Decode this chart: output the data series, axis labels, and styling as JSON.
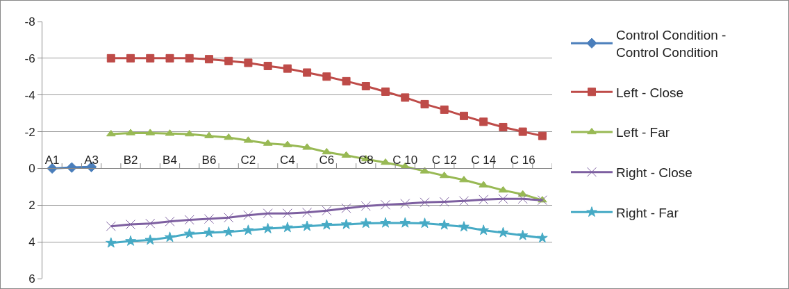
{
  "chart_data": {
    "type": "line",
    "categories": [
      "A1",
      null,
      "A3",
      null,
      "B2",
      null,
      "B4",
      null,
      "B6",
      null,
      "C2",
      null,
      "C4",
      null,
      "C6",
      null,
      "C8",
      null,
      "C 10",
      null,
      "C 12",
      null,
      "C 14",
      null,
      "C 16",
      null
    ],
    "series": [
      {
        "name": "Control Condition - Control Condition",
        "color": "#4a7ebb",
        "marker": "diamond",
        "values": [
          0,
          -0.05,
          -0.08,
          null,
          null,
          null,
          null,
          null,
          null,
          null,
          null,
          null,
          null,
          null,
          null,
          null,
          null,
          null,
          null,
          null,
          null,
          null,
          null,
          null,
          null,
          null
        ]
      },
      {
        "name": "Left - Close",
        "color": "#be4b48",
        "marker": "square",
        "values": [
          null,
          null,
          null,
          -6.0,
          -6.0,
          -6.0,
          -6.0,
          -6.0,
          -5.95,
          -5.85,
          -5.75,
          -5.58,
          -5.44,
          -5.22,
          -5.0,
          -4.75,
          -4.48,
          -4.18,
          -3.86,
          -3.5,
          -3.2,
          -2.86,
          -2.54,
          -2.25,
          -2.0,
          -1.77
        ]
      },
      {
        "name": "Left - Far",
        "color": "#98b954",
        "marker": "triangle",
        "values": [
          null,
          null,
          null,
          -1.87,
          -1.93,
          -1.93,
          -1.9,
          -1.87,
          -1.77,
          -1.68,
          -1.52,
          -1.36,
          -1.28,
          -1.14,
          -0.89,
          -0.71,
          -0.51,
          -0.32,
          -0.1,
          0.15,
          0.4,
          0.63,
          0.91,
          1.19,
          1.41,
          1.73
        ]
      },
      {
        "name": "Right - Close",
        "color": "#7d5fa0",
        "marker": "cross",
        "values": [
          null,
          null,
          null,
          3.15,
          3.05,
          3.0,
          2.89,
          2.8,
          2.75,
          2.68,
          2.55,
          2.45,
          2.45,
          2.4,
          2.3,
          2.17,
          2.05,
          1.98,
          1.92,
          1.85,
          1.82,
          1.77,
          1.7,
          1.66,
          1.66,
          1.73
        ]
      },
      {
        "name": "Right - Far",
        "color": "#46aac5",
        "marker": "star",
        "values": [
          null,
          null,
          null,
          4.06,
          3.96,
          3.9,
          3.75,
          3.56,
          3.5,
          3.46,
          3.37,
          3.28,
          3.22,
          3.15,
          3.08,
          3.05,
          2.99,
          2.97,
          2.97,
          2.99,
          3.08,
          3.18,
          3.37,
          3.5,
          3.65,
          3.79
        ]
      }
    ],
    "ylim": [
      6,
      -8
    ],
    "yticks": [
      -8,
      -6,
      -4,
      -2,
      0,
      2,
      4,
      6
    ],
    "grid": "y",
    "legend": "right",
    "line_style": "solid"
  }
}
